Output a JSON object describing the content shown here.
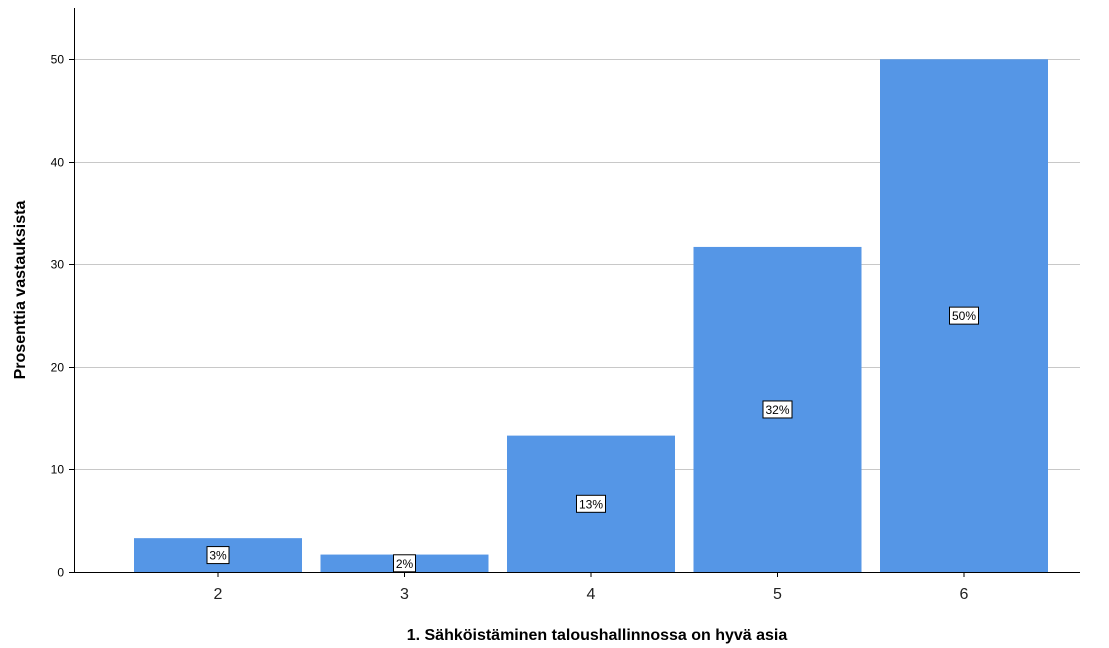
{
  "chart_data": {
    "type": "bar",
    "categories": [
      "2",
      "3",
      "4",
      "5",
      "6"
    ],
    "values": [
      3.3,
      1.7,
      13.3,
      31.7,
      50.0
    ],
    "data_labels": [
      "3%",
      "2%",
      "13%",
      "32%",
      "50%"
    ],
    "xlabel": "1. Sähköistäminen taloushallinnossa on hyvä asia",
    "ylabel": "Prosenttia vastauksista",
    "ylim": [
      0,
      55
    ],
    "yticks": [
      0,
      10,
      20,
      30,
      40,
      50
    ],
    "grid": true,
    "bar_color": "#5596e6"
  }
}
